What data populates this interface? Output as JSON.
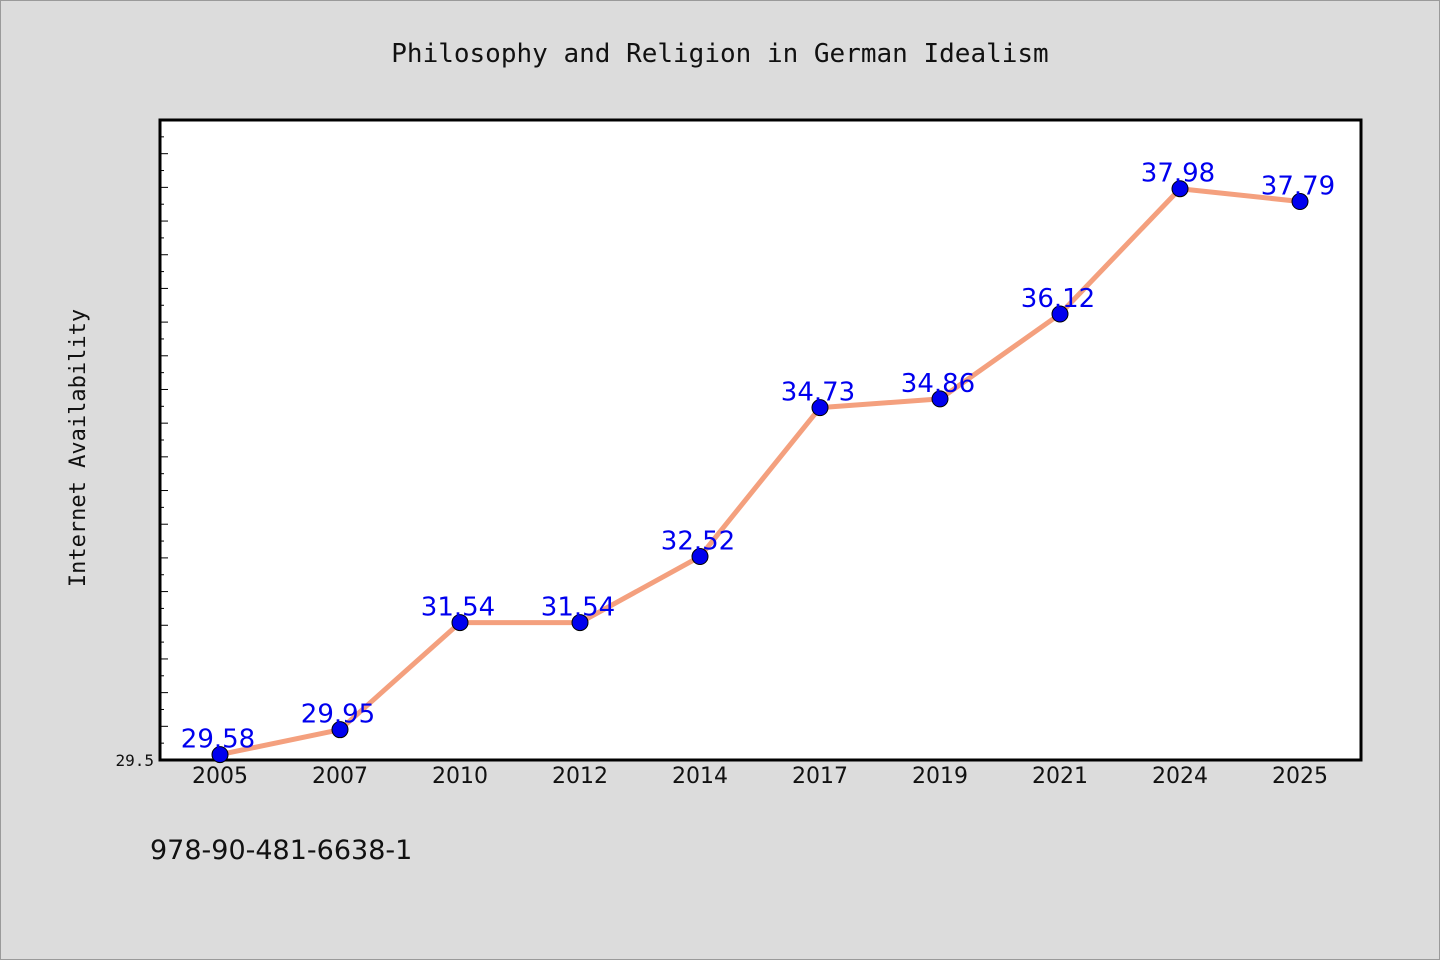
{
  "chart_data": {
    "type": "line",
    "title": "Philosophy and Religion in German Idealism",
    "ylabel": "Internet Availability",
    "xlabel": "",
    "categories": [
      "2005",
      "2007",
      "2010",
      "2012",
      "2014",
      "2017",
      "2019",
      "2021",
      "2024",
      "2025"
    ],
    "series": [
      {
        "values": [
          29.58,
          29.95,
          31.54,
          31.54,
          32.52,
          34.73,
          34.86,
          36.12,
          37.98,
          37.79
        ]
      }
    ],
    "data_labels": [
      "29.58",
      "29.95",
      "31.54",
      "31.54",
      "32.52",
      "34.73",
      "34.86",
      "36.12",
      "37.98",
      "37.79"
    ],
    "ylim": [
      29.5,
      39.0
    ],
    "y_tick_labels": [
      "29.5"
    ],
    "grid": false,
    "legend": "none",
    "colors": {
      "line": "#f4a07e",
      "marker": "#0000ee",
      "data_label": "#0000ee",
      "plot_background": "#ffffff",
      "page_background": "#dcdcdc"
    }
  },
  "footer": {
    "isbn": "978-90-481-6638-1"
  }
}
